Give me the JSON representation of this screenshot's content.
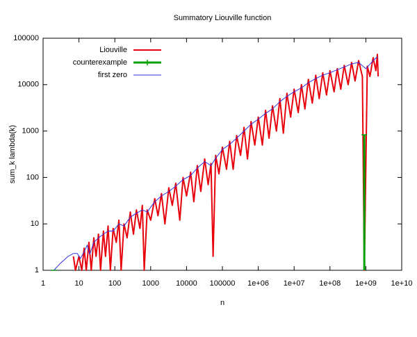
{
  "chart_data": {
    "type": "line",
    "title": "Summatory Liouville function",
    "xlabel": "n",
    "ylabel": "sum_k lambda(k)",
    "xlog": true,
    "ylog": true,
    "xlim": [
      1,
      10000000000
    ],
    "ylim": [
      1,
      100000
    ],
    "xticks": [
      1,
      10,
      100,
      1000,
      10000,
      100000,
      {
        "value": 1000000,
        "label": "1e+06"
      },
      {
        "value": 10000000,
        "label": "1e+07"
      },
      {
        "value": 100000000,
        "label": "1e+08"
      },
      {
        "value": 1000000000,
        "label": "1e+09"
      },
      {
        "value": 10000000000,
        "label": "1e+10"
      }
    ],
    "yticks": [
      1,
      10,
      100,
      1000,
      10000,
      100000
    ],
    "legend": "top-left",
    "series": [
      {
        "name": "Liouville",
        "color": "#e8000b",
        "style": "line",
        "x": [
          7,
          8,
          10,
          12,
          14,
          16,
          19,
          22,
          26,
          30,
          35,
          40,
          48,
          55,
          65,
          75,
          90,
          110,
          130,
          150,
          180,
          220,
          270,
          330,
          400,
          500,
          586,
          660,
          800,
          1000,
          1300,
          1600,
          2000,
          2500,
          3200,
          4000,
          5000,
          6500,
          8000,
          10000,
          13000,
          16000,
          20000,
          25000,
          32000,
          40000,
          48000,
          55000,
          65000,
          80000,
          100000,
          130000,
          160000,
          200000,
          250000,
          320000,
          400000,
          500000,
          630000,
          800000,
          1000000,
          1300000,
          1600000,
          2000000,
          2500000,
          3200000,
          4000000,
          5000000,
          6300000,
          8000000,
          10000000,
          13000000,
          16000000,
          20000000,
          25000000,
          32000000,
          40000000,
          50000000,
          63000000,
          80000000,
          100000000,
          130000000,
          160000000,
          200000000,
          250000000,
          320000000,
          400000000,
          500000000,
          630000000,
          800000000,
          906000000,
          1100000000,
          1300000000,
          1600000000,
          1900000000,
          2100000000,
          2200000000
        ],
        "values": [
          2,
          1,
          2,
          1,
          3,
          1,
          4,
          1,
          5,
          2,
          6,
          1,
          7,
          2,
          9,
          1,
          8,
          4,
          12,
          1,
          10,
          5,
          18,
          6,
          20,
          8,
          25,
          1,
          20,
          12,
          35,
          15,
          45,
          10,
          60,
          25,
          75,
          12,
          100,
          40,
          130,
          30,
          180,
          50,
          250,
          70,
          200,
          2,
          300,
          120,
          450,
          150,
          600,
          150,
          800,
          300,
          1200,
          250,
          1600,
          500,
          2000,
          500,
          2800,
          700,
          3500,
          1000,
          5000,
          900,
          6500,
          2000,
          8000,
          2500,
          10000,
          3000,
          13000,
          4000,
          16000,
          5000,
          18000,
          6000,
          20000,
          7000,
          22000,
          8000,
          26000,
          10000,
          30000,
          12000,
          33000,
          15000,
          1,
          25000,
          15000,
          38000,
          20000,
          45000,
          15000
        ]
      },
      {
        "name": "counterexample",
        "color": "#00a000",
        "style": "impulse",
        "x": [
          2,
          906150257
        ],
        "values": [
          1,
          830
        ]
      },
      {
        "name": "first zero",
        "color": "#3030e0",
        "style": "line",
        "x": [
          2,
          3,
          5,
          7,
          9,
          11,
          14,
          17,
          20,
          26,
          35,
          48,
          65,
          90,
          130,
          180,
          270,
          400,
          586,
          800,
          1300,
          2000,
          3200,
          5000,
          8000,
          13000,
          20000,
          32000,
          48000,
          65000,
          100000,
          160000,
          250000,
          400000,
          630000,
          1000000,
          1600000,
          2500000,
          4000000,
          6300000,
          10000000,
          16000000,
          25000000,
          40000000,
          63000000,
          100000000,
          160000000,
          250000000,
          400000000,
          630000000,
          1000000000,
          1600000000,
          2100000000
        ],
        "values": [
          1,
          1.4,
          2,
          2.3,
          2.3,
          1.8,
          2.5,
          3.5,
          2.2,
          4,
          5,
          6,
          7,
          7,
          10,
          9,
          14,
          17,
          20,
          18,
          30,
          40,
          50,
          65,
          90,
          110,
          160,
          220,
          180,
          260,
          400,
          520,
          700,
          1000,
          1400,
          1800,
          2400,
          3000,
          4300,
          5600,
          7000,
          8500,
          11000,
          13500,
          16000,
          18000,
          21000,
          24000,
          28000,
          30000,
          22000,
          33000,
          40000
        ]
      }
    ]
  }
}
